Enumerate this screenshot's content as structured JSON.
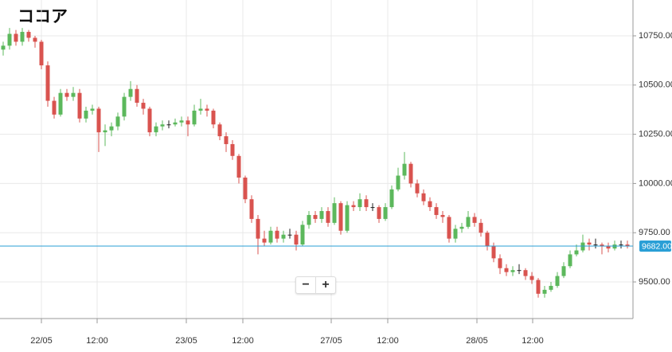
{
  "chart_data": {
    "type": "candlestick",
    "title": "ココア",
    "open": [
      10680,
      10700,
      10760,
      10720,
      10770,
      10740,
      10720,
      10600,
      10420,
      10350,
      10460,
      10440,
      10460,
      10330,
      10370,
      10380,
      10260,
      10270,
      10290,
      10340,
      10440,
      10480,
      10410,
      10380,
      10260,
      10290,
      10300,
      10300,
      10310,
      10320,
      10300,
      10370,
      10380,
      10370,
      10300,
      10240,
      10200,
      10140,
      10030,
      9920,
      9820,
      9720,
      9700,
      9760,
      9720,
      9740,
      9740,
      9690,
      9790,
      9840,
      9820,
      9860,
      9800,
      9900,
      9760,
      9890,
      9880,
      9920,
      9880,
      9880,
      9820,
      9880,
      9970,
      10040,
      10100,
      10000,
      9950,
      9910,
      9880,
      9840,
      9830,
      9720,
      9770,
      9780,
      9830,
      9800,
      9750,
      9680,
      9620,
      9570,
      9550,
      9560,
      9560,
      9530,
      9510,
      9440,
      9460,
      9480,
      9530,
      9580,
      9640,
      9660,
      9700,
      9690,
      9690,
      9680,
      9670,
      9690,
      9690
    ],
    "high": [
      10720,
      10790,
      10780,
      10790,
      10780,
      10750,
      10730,
      10620,
      10440,
      10480,
      10480,
      10490,
      10480,
      10390,
      10400,
      10390,
      10300,
      10310,
      10360,
      10460,
      10520,
      10500,
      10430,
      10390,
      10310,
      10320,
      10320,
      10330,
      10340,
      10340,
      10400,
      10430,
      10400,
      10380,
      10310,
      10260,
      10220,
      10150,
      10040,
      9940,
      9840,
      9760,
      9780,
      9780,
      9760,
      9770,
      9760,
      9810,
      9860,
      9860,
      9880,
      9880,
      9930,
      9910,
      9910,
      9910,
      9950,
      9940,
      9900,
      9890,
      9900,
      9990,
      10080,
      10160,
      10110,
      10020,
      9970,
      9930,
      9900,
      9860,
      9840,
      9790,
      9800,
      9860,
      9850,
      9820,
      9760,
      9700,
      9640,
      9590,
      9580,
      9590,
      9570,
      9550,
      9520,
      9480,
      9500,
      9550,
      9600,
      9660,
      9690,
      9740,
      9720,
      9720,
      9700,
      9700,
      9710,
      9710,
      9710
    ],
    "low": [
      10650,
      10680,
      10700,
      10700,
      10720,
      10690,
      10580,
      10390,
      10330,
      10340,
      10420,
      10420,
      10310,
      10310,
      10350,
      10160,
      10190,
      10240,
      10270,
      10320,
      10420,
      10390,
      10350,
      10240,
      10240,
      10270,
      10280,
      10290,
      10290,
      10240,
      10290,
      10350,
      10340,
      10280,
      10220,
      10160,
      10120,
      10000,
      9900,
      9800,
      9640,
      9680,
      9690,
      9700,
      9700,
      9720,
      9660,
      9680,
      9770,
      9800,
      9800,
      9780,
      9790,
      9740,
      9750,
      9860,
      9860,
      9860,
      9860,
      9800,
      9810,
      9870,
      9960,
      10020,
      9980,
      9930,
      9890,
      9860,
      9820,
      9800,
      9700,
      9700,
      9750,
      9770,
      9780,
      9730,
      9660,
      9600,
      9540,
      9530,
      9530,
      9540,
      9510,
      9490,
      9420,
      9420,
      9450,
      9470,
      9520,
      9570,
      9630,
      9650,
      9660,
      9670,
      9640,
      9650,
      9660,
      9670,
      9670
    ],
    "close": [
      10700,
      10760,
      10720,
      10770,
      10740,
      10720,
      10600,
      10420,
      10350,
      10460,
      10440,
      10460,
      10330,
      10370,
      10380,
      10260,
      10270,
      10290,
      10340,
      10440,
      10480,
      10410,
      10380,
      10260,
      10290,
      10300,
      10300,
      10310,
      10320,
      10300,
      10370,
      10380,
      10370,
      10300,
      10240,
      10200,
      10140,
      10030,
      9920,
      9820,
      9720,
      9700,
      9760,
      9720,
      9740,
      9740,
      9690,
      9790,
      9840,
      9820,
      9860,
      9800,
      9900,
      9760,
      9890,
      9880,
      9920,
      9880,
      9880,
      9820,
      9880,
      9970,
      10040,
      10100,
      10000,
      9950,
      9910,
      9880,
      9840,
      9830,
      9720,
      9770,
      9780,
      9830,
      9800,
      9750,
      9680,
      9620,
      9570,
      9550,
      9560,
      9560,
      9530,
      9510,
      9440,
      9460,
      9480,
      9530,
      9580,
      9640,
      9660,
      9700,
      9690,
      9690,
      9680,
      9670,
      9690,
      9690,
      9682
    ],
    "up_color": "#5cb85c",
    "down_color": "#d9534f",
    "flat_color": "#222222",
    "xlim": [
      -0.5,
      98.875
    ],
    "xticks": [
      {
        "value": 6,
        "label": "22/05"
      },
      {
        "value": 14.75,
        "label": "12:00"
      },
      {
        "value": 28.75,
        "label": "23/05"
      },
      {
        "value": 37.625,
        "label": "12:00"
      },
      {
        "value": 51.5,
        "label": "27/05"
      },
      {
        "value": 60.375,
        "label": "12:00"
      },
      {
        "value": 74.375,
        "label": "28/05"
      },
      {
        "value": 83.125,
        "label": "12:00"
      }
    ],
    "ylim": [
      9314,
      10932
    ],
    "yticks": [
      {
        "value": 9500,
        "label": "9500.00"
      },
      {
        "value": 9750,
        "label": "9750.00"
      },
      {
        "value": 10000,
        "label": "10000.00"
      },
      {
        "value": 10250,
        "label": "10250.00"
      },
      {
        "value": 10500,
        "label": "10500.00"
      },
      {
        "value": 10750,
        "label": "10750.00"
      }
    ],
    "grid": true,
    "last_price": {
      "value": 9682,
      "label": "9682.00"
    },
    "last_price_color": "#2a9fd6"
  },
  "controls": {
    "zoom_out": "−",
    "zoom_in": "+"
  }
}
